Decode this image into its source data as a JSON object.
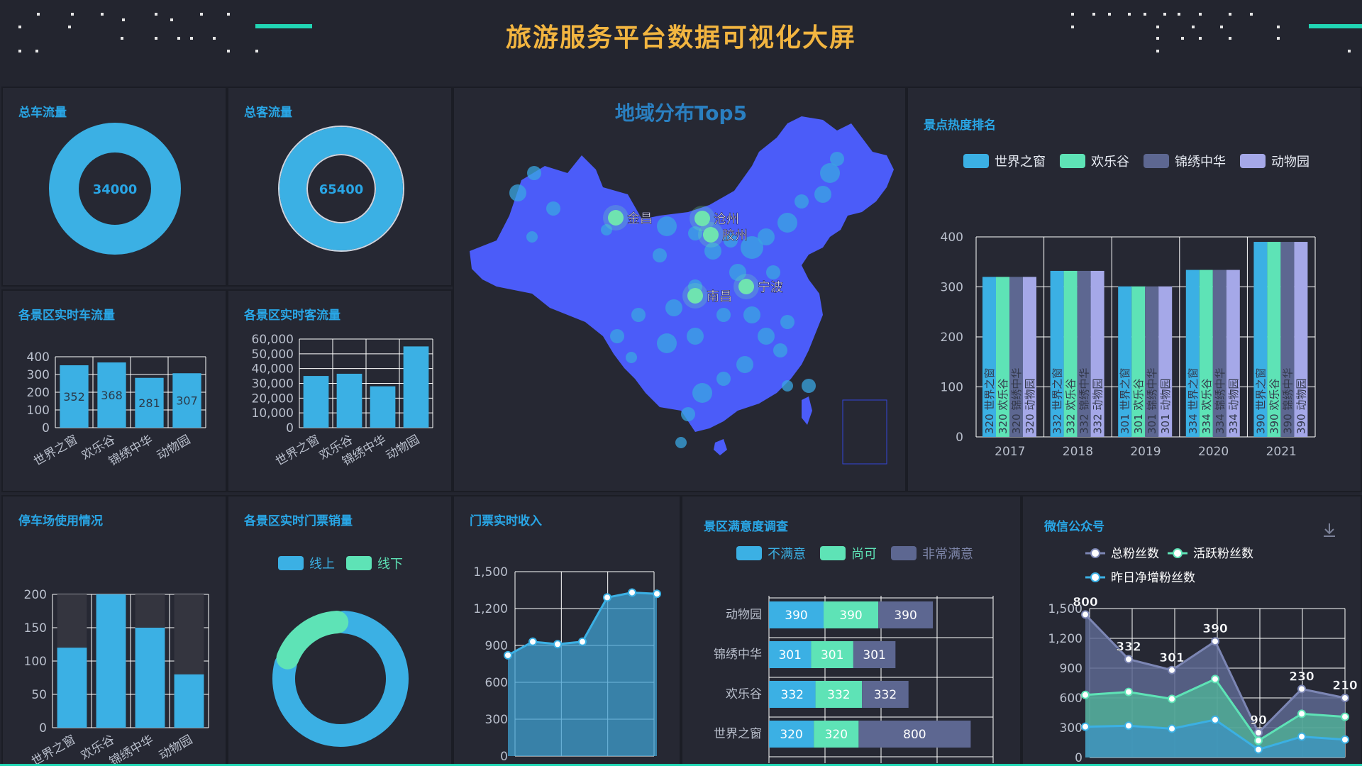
{
  "header": {
    "title": "旅游服务平台数据可视化大屏"
  },
  "colors": {
    "blue": "#3bb0e4",
    "green": "#5ee3b6",
    "slate": "#5d6791",
    "lavender": "#a5a8e8",
    "accent": "#21d6b4",
    "title": "#f2b540",
    "map": "#4b5cf9"
  },
  "panels": {
    "total_cars": {
      "title": "总车流量",
      "value": "34000"
    },
    "total_visitors": {
      "title": "总客流量",
      "value": "65400"
    },
    "map": {
      "title": "地域分布Top5",
      "cities": [
        "金昌",
        "沧州",
        "胶州",
        "宁波",
        "南昌"
      ]
    },
    "heat_rank": {
      "title": "景点热度排名"
    },
    "car_flow": {
      "title": "各景区实时车流量"
    },
    "visitor_flow": {
      "title": "各景区实时客流量"
    },
    "parking": {
      "title": "停车场使用情况"
    },
    "ticket_sales": {
      "title": "各景区实时门票销量"
    },
    "revenue": {
      "title": "门票实时收入"
    },
    "satisfaction": {
      "title": "景区满意度调查"
    },
    "wechat": {
      "title": "微信公众号",
      "download_icon": "download-icon"
    }
  },
  "chart_data": [
    {
      "id": "total_cars",
      "type": "pie",
      "values": [
        34000
      ],
      "labels": [
        "34000"
      ]
    },
    {
      "id": "total_visitors",
      "type": "pie",
      "values": [
        65400
      ],
      "labels": [
        "65400"
      ]
    },
    {
      "id": "heat_rank",
      "type": "bar",
      "categories": [
        "2017",
        "2018",
        "2019",
        "2020",
        "2021"
      ],
      "series": [
        {
          "name": "世界之窗",
          "values": [
            320,
            332,
            301,
            334,
            390
          ]
        },
        {
          "name": "欢乐谷",
          "values": [
            320,
            332,
            301,
            334,
            390
          ]
        },
        {
          "name": "锦绣中华",
          "values": [
            320,
            332,
            301,
            334,
            390
          ]
        },
        {
          "name": "动物园",
          "values": [
            320,
            332,
            301,
            334,
            390
          ]
        }
      ],
      "ylim": [
        0,
        400
      ],
      "yticks": [
        "0",
        "100",
        "200",
        "300",
        "400"
      ],
      "legend": "top"
    },
    {
      "id": "car_flow",
      "type": "bar",
      "categories": [
        "世界之窗",
        "欢乐谷",
        "锦绣中华",
        "动物园"
      ],
      "values": [
        352,
        368,
        281,
        307
      ],
      "ylim": [
        0,
        400
      ],
      "yticks": [
        "0",
        "100",
        "200",
        "300",
        "400"
      ]
    },
    {
      "id": "visitor_flow",
      "type": "bar",
      "categories": [
        "世界之窗",
        "欢乐谷",
        "锦绣中华",
        "动物园"
      ],
      "values": [
        35000,
        36500,
        28000,
        55000
      ],
      "ylim": [
        0,
        60000
      ],
      "yticks": [
        "0",
        "10,000",
        "20,000",
        "30,000",
        "40,000",
        "50,000",
        "60,000"
      ]
    },
    {
      "id": "parking",
      "type": "bar",
      "categories": [
        "世界之窗",
        "欢乐谷",
        "锦绣中华",
        "动物园"
      ],
      "values": [
        120,
        200,
        150,
        80
      ],
      "capacity": [
        200,
        200,
        200,
        200
      ],
      "ylim": [
        0,
        200
      ],
      "yticks": [
        "0",
        "50",
        "100",
        "150",
        "200"
      ]
    },
    {
      "id": "ticket_sales",
      "type": "pie",
      "series": [
        {
          "name": "线上",
          "value": 80
        },
        {
          "name": "线下",
          "value": 20
        }
      ],
      "legend": "top"
    },
    {
      "id": "revenue",
      "type": "area",
      "values": [
        820,
        930,
        910,
        930,
        1290,
        1330,
        1320
      ],
      "ylim": [
        0,
        1500
      ],
      "yticks": [
        "0",
        "300",
        "600",
        "900",
        "1,200",
        "1,500"
      ]
    },
    {
      "id": "satisfaction",
      "type": "bar",
      "orientation": "horizontal",
      "categories": [
        "世界之窗",
        "欢乐谷",
        "锦绣中华",
        "动物园"
      ],
      "series": [
        {
          "name": "不满意",
          "values": [
            320,
            332,
            301,
            390
          ]
        },
        {
          "name": "尚可",
          "values": [
            320,
            332,
            301,
            390
          ]
        },
        {
          "name": "非常满意",
          "values": [
            800,
            332,
            301,
            390
          ]
        }
      ],
      "xlim": [
        0,
        1600
      ],
      "legend": "top"
    },
    {
      "id": "wechat",
      "type": "area",
      "series": [
        {
          "name": "总粉丝数",
          "values": [
            1440,
            990,
            880,
            1170,
            250,
            690,
            600
          ]
        },
        {
          "name": "活跃粉丝数",
          "values": [
            630,
            660,
            590,
            790,
            170,
            440,
            410
          ]
        },
        {
          "name": "昨日净增粉丝数",
          "values": [
            310,
            320,
            290,
            380,
            80,
            210,
            180
          ]
        }
      ],
      "labels": [
        "800",
        "332",
        "301",
        "390",
        "90",
        "230",
        "210"
      ],
      "ylim": [
        0,
        1500
      ],
      "yticks": [
        "0",
        "300",
        "600",
        "900",
        "1,200",
        "1,500"
      ],
      "legend": "top"
    }
  ]
}
